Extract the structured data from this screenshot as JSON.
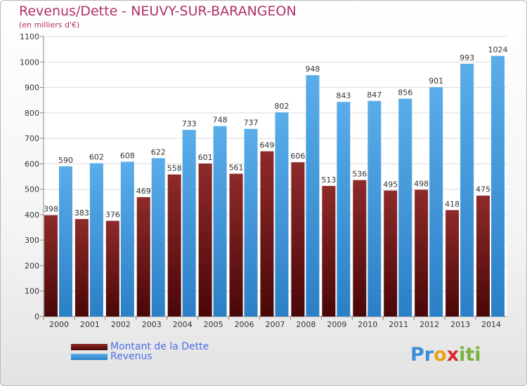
{
  "title": "Revenus/Dette - NEUVY-SUR-BARANGEON",
  "subtitle": "(en milliers d'€)",
  "brand": {
    "letters": [
      {
        "ch": "P",
        "color": "#3c8fd6"
      },
      {
        "ch": "r",
        "color": "#3c8fd6"
      },
      {
        "ch": "o",
        "color": "#e8a21e"
      },
      {
        "ch": "x",
        "color": "#d92b2b"
      },
      {
        "ch": "i",
        "color": "#79b33a"
      },
      {
        "ch": "t",
        "color": "#79b33a"
      },
      {
        "ch": "i",
        "color": "#79b33a"
      }
    ]
  },
  "legend": [
    {
      "label": "Montant de la Dette",
      "color": "#7a1f1f"
    },
    {
      "label": "Revenus",
      "color": "#4fa3e3"
    }
  ],
  "chart_data": {
    "type": "bar",
    "categories": [
      "2000",
      "2001",
      "2002",
      "2003",
      "2004",
      "2005",
      "2006",
      "2007",
      "2008",
      "2009",
      "2010",
      "2011",
      "2012",
      "2013",
      "2014"
    ],
    "series": [
      {
        "name": "Montant de la Dette",
        "color": "#7a1f1f",
        "values": [
          398,
          383,
          376,
          469,
          558,
          601,
          561,
          649,
          606,
          513,
          536,
          495,
          498,
          418,
          475
        ]
      },
      {
        "name": "Revenus",
        "color": "#4fa3e3",
        "values": [
          590,
          602,
          608,
          622,
          733,
          748,
          737,
          802,
          948,
          843,
          847,
          856,
          901,
          993,
          1024
        ]
      }
    ],
    "ylim": [
      0,
      1100
    ],
    "yticks": [
      0,
      100,
      200,
      300,
      400,
      500,
      600,
      700,
      800,
      900,
      1000,
      1100
    ],
    "grid": true,
    "legend_position": "bottom-left"
  }
}
